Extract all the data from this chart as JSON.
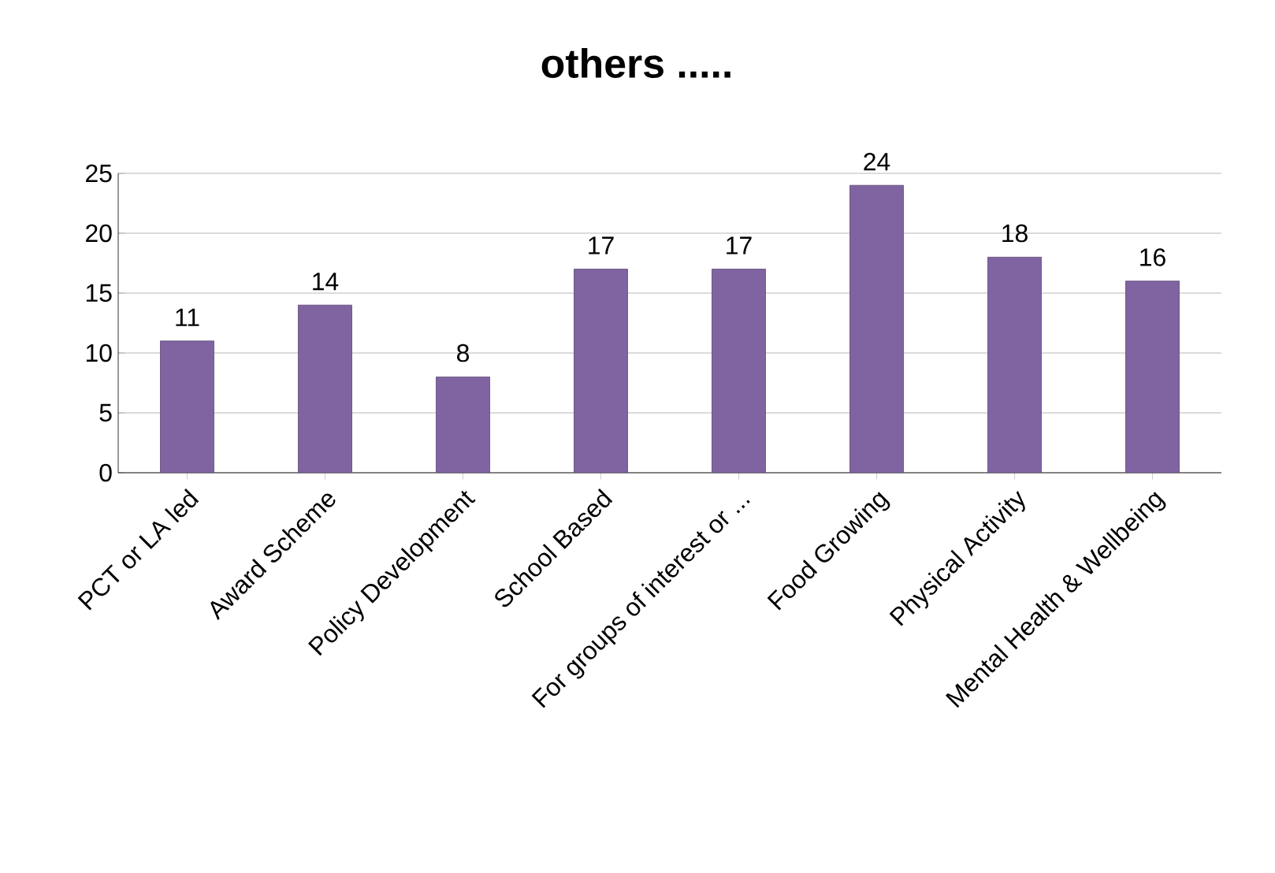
{
  "chart_data": {
    "type": "bar",
    "title": "others .....",
    "categories": [
      "PCT or LA led",
      "Award Scheme",
      "Policy Development",
      "School Based",
      "For groups of interest or ...",
      "Food Growing",
      "Physical Activity",
      "Mental Health & Wellbeing"
    ],
    "values": [
      11,
      14,
      8,
      17,
      17,
      24,
      18,
      16
    ],
    "color": "#8064a2",
    "ylim": [
      0,
      25
    ],
    "yticks": [
      0,
      5,
      10,
      15,
      20,
      25
    ],
    "grid": "y",
    "data_labels": true
  }
}
